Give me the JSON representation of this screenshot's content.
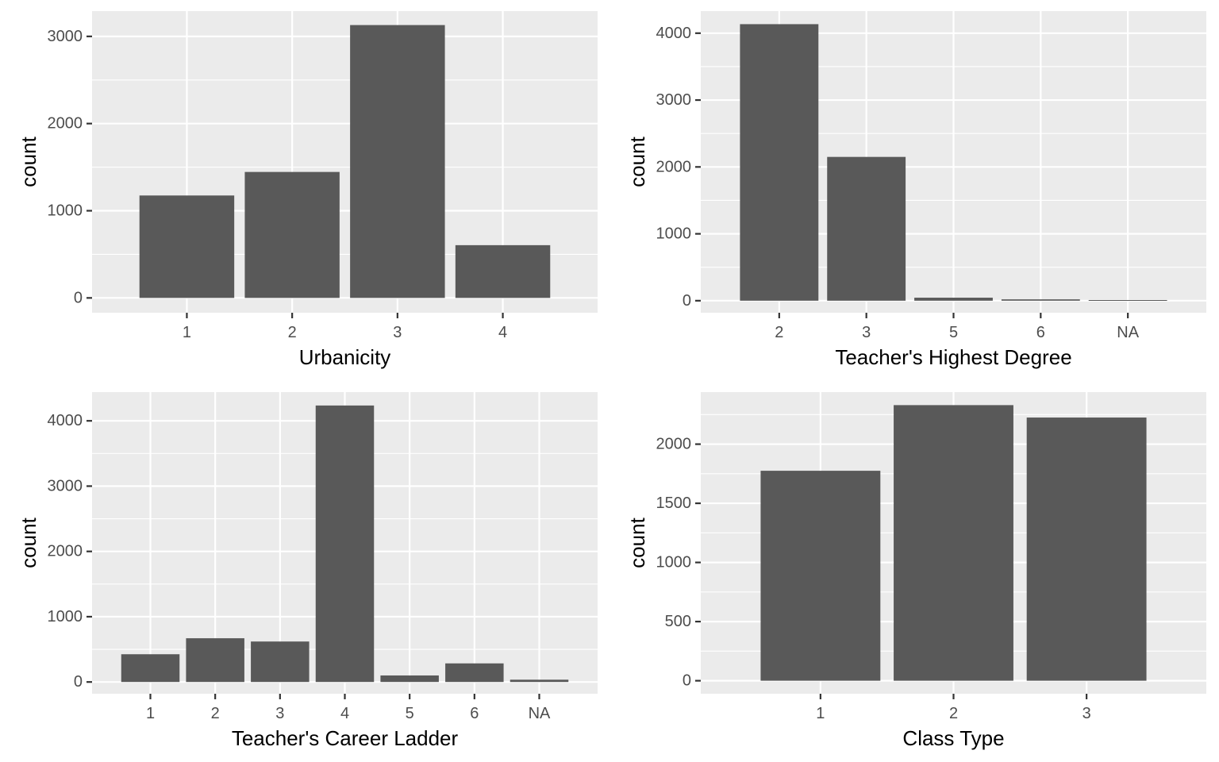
{
  "chart_data": [
    {
      "type": "bar",
      "xlabel": "Urbanicity",
      "ylabel": "count",
      "categories": [
        "1",
        "2",
        "3",
        "4"
      ],
      "values": [
        1175,
        1445,
        3130,
        605
      ],
      "ylim": [
        -170,
        3290
      ],
      "yticks": [
        0,
        1000,
        2000,
        3000
      ],
      "grid": true,
      "legend": "none"
    },
    {
      "type": "bar",
      "xlabel": "Teacher's Highest Degree",
      "ylabel": "count",
      "categories": [
        "2",
        "3",
        "5",
        "6",
        "NA"
      ],
      "values": [
        4135,
        2150,
        45,
        20,
        10
      ],
      "ylim": [
        -180,
        4330
      ],
      "yticks": [
        0,
        1000,
        2000,
        3000,
        4000
      ],
      "grid": true,
      "legend": "none"
    },
    {
      "type": "bar",
      "xlabel": "Teacher's Career Ladder",
      "ylabel": "count",
      "categories": [
        "1",
        "2",
        "3",
        "4",
        "5",
        "6",
        "NA"
      ],
      "values": [
        425,
        670,
        620,
        4235,
        100,
        285,
        35
      ],
      "ylim": [
        -180,
        4440
      ],
      "yticks": [
        0,
        1000,
        2000,
        3000,
        4000
      ],
      "grid": true,
      "legend": "none"
    },
    {
      "type": "bar",
      "xlabel": "Class Type",
      "ylabel": "count",
      "categories": [
        "1",
        "2",
        "3"
      ],
      "values": [
        1775,
        2330,
        2225
      ],
      "ylim": [
        -110,
        2440
      ],
      "yticks": [
        0,
        500,
        1000,
        1500,
        2000
      ],
      "grid": true,
      "legend": "none"
    }
  ]
}
